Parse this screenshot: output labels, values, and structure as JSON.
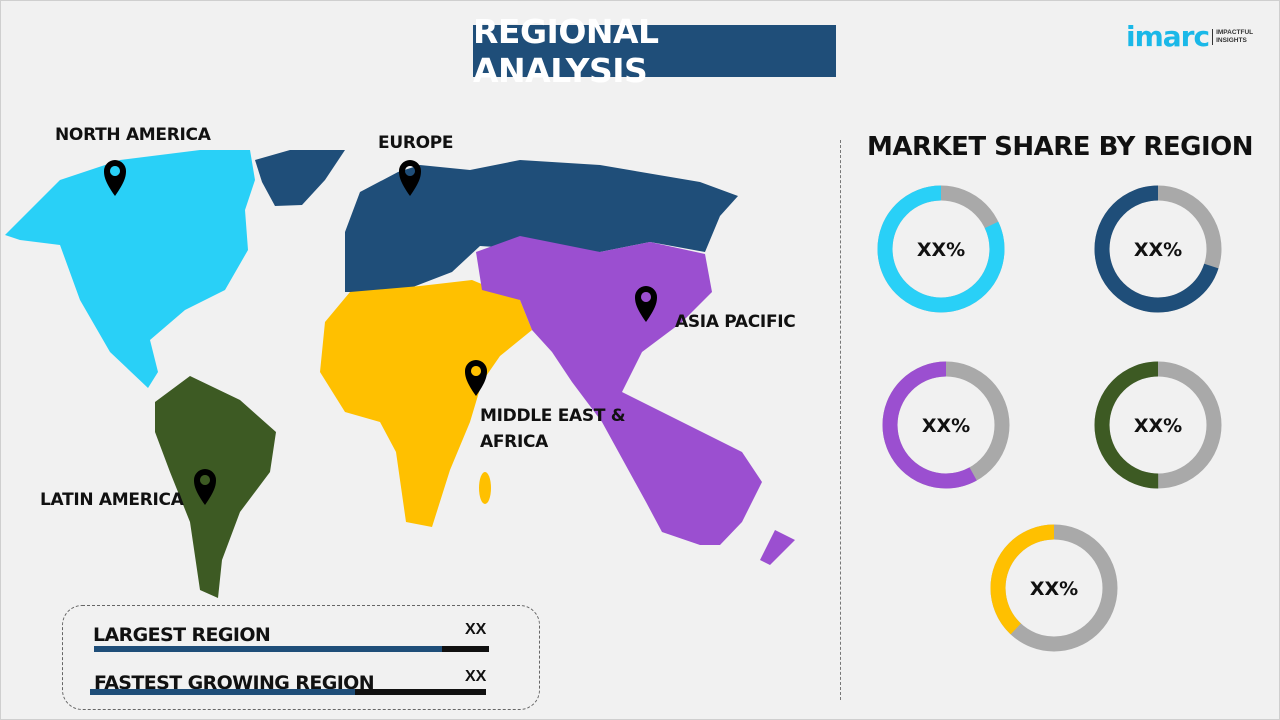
{
  "header": {
    "title": "REGIONAL ANALYSIS"
  },
  "logo": {
    "word": "imarc",
    "tagline_1": "IMPACTFUL",
    "tagline_2": "INSIGHTS"
  },
  "map": {
    "regions": [
      {
        "name": "NORTH AMERICA",
        "color": "#29d0f7"
      },
      {
        "name": "EUROPE",
        "color": "#1f4e79"
      },
      {
        "name": "ASIA PACIFIC",
        "color": "#9b4fd0"
      },
      {
        "name": "MIDDLE EAST &",
        "name_line2": "AFRICA",
        "color": "#ffc000"
      },
      {
        "name": "LATIN AMERICA",
        "color": "#3d5a23"
      }
    ]
  },
  "market_share": {
    "title": "MARKET SHARE BY REGION",
    "track_color": "#a9a9a9",
    "donuts": [
      {
        "label": "XX%",
        "color": "#29d0f7",
        "fraction": 0.82
      },
      {
        "label": "XX%",
        "color": "#1f4e79",
        "fraction": 0.7
      },
      {
        "label": "XX%",
        "color": "#9b4fd0",
        "fraction": 0.58
      },
      {
        "label": "XX%",
        "color": "#3d5a23",
        "fraction": 0.5
      },
      {
        "label": "XX%",
        "color": "#ffc000",
        "fraction": 0.38
      }
    ]
  },
  "summary": {
    "largest_label": "LARGEST REGION",
    "largest_value": "XX",
    "largest_fraction": 0.88,
    "fastest_label": "FASTEST GROWING REGION",
    "fastest_value": "XX",
    "fastest_fraction": 0.67
  }
}
